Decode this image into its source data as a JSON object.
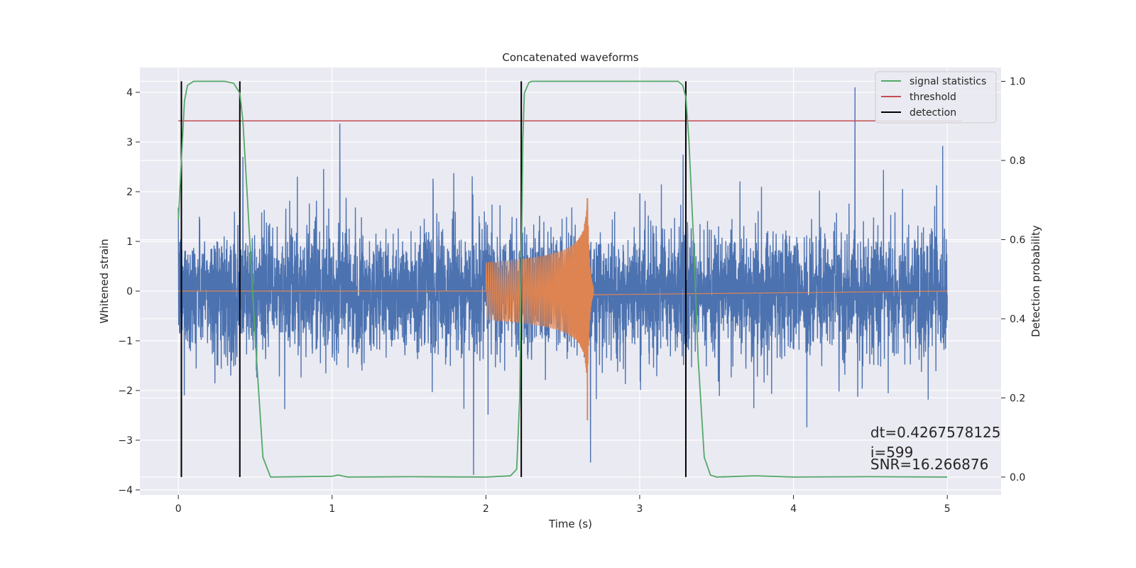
{
  "chart_data": {
    "type": "line",
    "title": "Concatenated waveforms",
    "xlabel": "Time (s)",
    "ylabel": "Whitened strain",
    "y2label": "Detection probability",
    "xlim": [
      -0.25,
      5.35
    ],
    "ylim": [
      -4.1,
      4.5
    ],
    "y2lim": [
      -0.045,
      1.035
    ],
    "xticks": [
      0,
      1,
      2,
      3,
      4,
      5
    ],
    "yticks": [
      -4,
      -3,
      -2,
      -1,
      0,
      1,
      2,
      3,
      4
    ],
    "y2ticks": [
      0.0,
      0.2,
      0.4,
      0.6,
      0.8,
      1.0
    ],
    "xtick_labels": [
      "0",
      "1",
      "2",
      "3",
      "4",
      "5"
    ],
    "ytick_labels": [
      "−4",
      "−3",
      "−2",
      "−1",
      "0",
      "1",
      "2",
      "3",
      "4"
    ],
    "y2tick_labels": [
      "0.0",
      "0.2",
      "0.4",
      "0.6",
      "0.8",
      "1.0"
    ],
    "grid": true,
    "legend_position": "top-right",
    "colors": {
      "background": "#eaeaf2",
      "grid": "#ffffff",
      "strain": "#4c72b0",
      "injection": "#dd8452",
      "signal_statistics": "#55a868",
      "threshold": "#c44e52",
      "detection": "#000000"
    },
    "series": [
      {
        "name": "",
        "axis": "left",
        "kind": "noise",
        "x_range": [
          0,
          5
        ],
        "envelope_typical": 1.1,
        "max": 4.1,
        "min": -3.7,
        "peaks": [
          [
            0.42,
            2.7
          ],
          [
            1.05,
            3.37
          ],
          [
            1.92,
            -3.7
          ],
          [
            2.68,
            -3.45
          ],
          [
            4.4,
            4.1
          ],
          [
            4.97,
            2.92
          ]
        ]
      },
      {
        "name": "",
        "axis": "left",
        "kind": "chirp",
        "x_range": [
          2.0,
          2.7
        ],
        "start_amplitude": 0.58,
        "peak_time": 2.66,
        "peak_amplitude": [
          1.87,
          -2.6
        ]
      },
      {
        "name": "signal statistics",
        "axis": "right",
        "x": [
          0.0,
          0.02,
          0.04,
          0.06,
          0.1,
          0.3,
          0.36,
          0.4,
          0.42,
          0.45,
          0.5,
          0.55,
          0.6,
          1.0,
          1.04,
          1.1,
          1.5,
          2.0,
          2.16,
          2.2,
          2.22,
          2.24,
          2.25,
          2.28,
          2.3,
          3.25,
          3.28,
          3.3,
          3.32,
          3.35,
          3.38,
          3.42,
          3.46,
          3.5,
          3.75,
          4.0,
          4.5,
          5.0
        ],
        "y": [
          0.65,
          0.8,
          0.95,
          0.99,
          1.0,
          1.0,
          0.995,
          0.97,
          0.9,
          0.7,
          0.35,
          0.05,
          0.0,
          0.002,
          0.005,
          0.0,
          0.001,
          0.0,
          0.003,
          0.02,
          0.2,
          0.85,
          0.97,
          0.997,
          1.0,
          1.0,
          0.99,
          0.96,
          0.85,
          0.6,
          0.3,
          0.05,
          0.005,
          0.0,
          0.003,
          0.0,
          0.001,
          0.0
        ]
      },
      {
        "name": "threshold",
        "axis": "right",
        "x": [
          0.0,
          5.1
        ],
        "y": [
          0.9,
          0.9
        ]
      },
      {
        "name": "detection",
        "axis": "right",
        "kind": "vlines",
        "x": [
          0.02,
          0.4,
          2.23,
          3.3
        ],
        "ymin": 0.0,
        "ymax": 1.0
      }
    ],
    "annotations": [
      {
        "text": "dt=0.4267578125",
        "x": 4.5,
        "y": 0.1
      },
      {
        "text": " i=599",
        "x": 4.5,
        "y": 0.05
      },
      {
        "text": "SNR=16.266876",
        "x": 4.5,
        "y": 0.02
      }
    ]
  }
}
